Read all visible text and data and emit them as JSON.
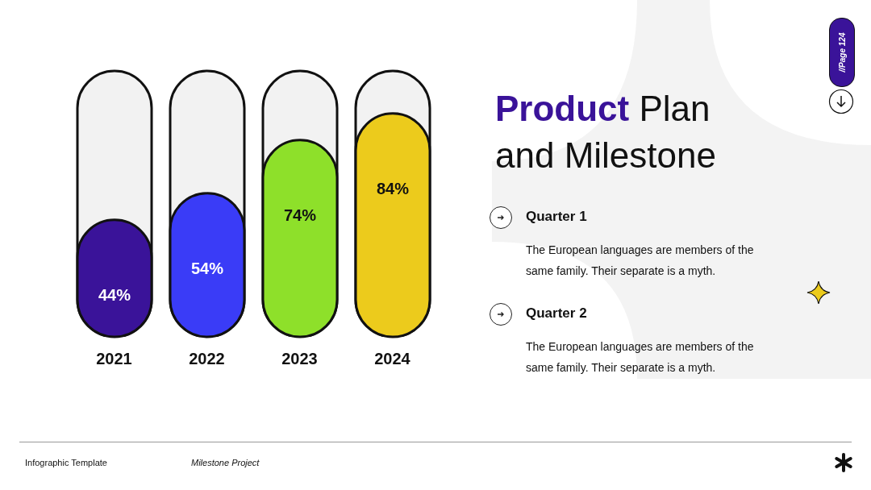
{
  "chart_data": {
    "type": "bar",
    "title": "Product Plan and Milestone",
    "categories": [
      "2021",
      "2022",
      "2023",
      "2024"
    ],
    "values": [
      44,
      54,
      74,
      84
    ],
    "colors": [
      "#3a1399",
      "#3a3cf7",
      "#8ee02a",
      "#eccb1c"
    ],
    "ylim": [
      0,
      100
    ],
    "value_labels": [
      "44%",
      "54%",
      "74%",
      "84%"
    ],
    "annotations": [
      "Quarter 1",
      "The European languages are members of the same family. Their separate is a myth.",
      "Quarter 2",
      "The European languages are members of the same family. Their separate is a myth.",
      "Infographic Template",
      "Milestone Project",
      "//Page 124"
    ]
  }
}
